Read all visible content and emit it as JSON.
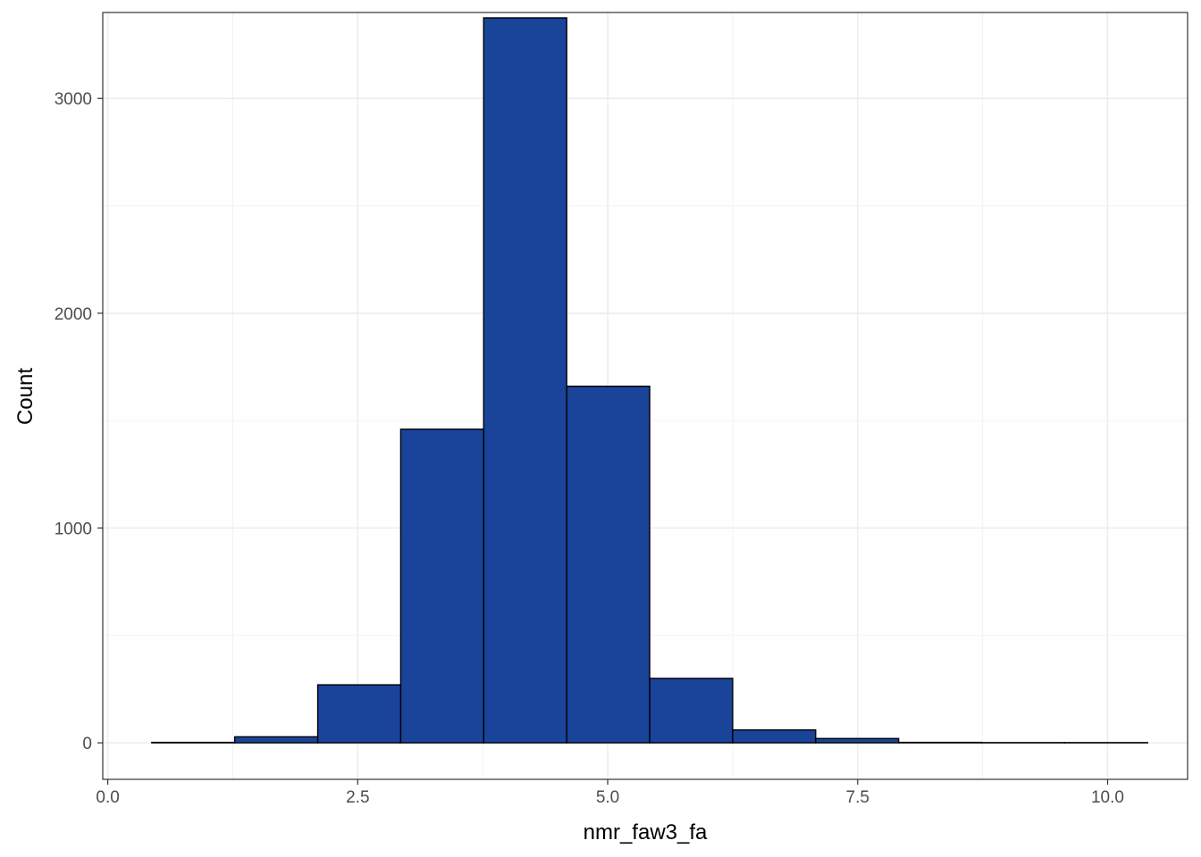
{
  "chart_data": {
    "type": "bar",
    "title": "",
    "xlabel": "nmr_faw3_fa",
    "ylabel": "Count",
    "xlim": [
      -0.05,
      10.8
    ],
    "ylim": [
      -170,
      3400
    ],
    "x_ticks": [
      0.0,
      2.5,
      5.0,
      7.5,
      10.0
    ],
    "x_tick_labels": [
      "0.0",
      "2.5",
      "5.0",
      "7.5",
      "10.0"
    ],
    "y_ticks": [
      0,
      1000,
      2000,
      3000
    ],
    "y_tick_labels": [
      "0",
      "1000",
      "2000",
      "3000"
    ],
    "grid": true,
    "legend": "none",
    "bar_fill": "#1a449a",
    "bar_outline": "#000000",
    "bins": [
      {
        "x0": 0.44,
        "x1": 1.27,
        "count": 2
      },
      {
        "x0": 1.27,
        "x1": 2.1,
        "count": 28
      },
      {
        "x0": 2.1,
        "x1": 2.93,
        "count": 270
      },
      {
        "x0": 2.93,
        "x1": 3.76,
        "count": 1460
      },
      {
        "x0": 3.76,
        "x1": 4.59,
        "count": 3375
      },
      {
        "x0": 4.59,
        "x1": 5.42,
        "count": 1660
      },
      {
        "x0": 5.42,
        "x1": 6.25,
        "count": 300
      },
      {
        "x0": 6.25,
        "x1": 7.08,
        "count": 60
      },
      {
        "x0": 7.08,
        "x1": 7.91,
        "count": 20
      },
      {
        "x0": 7.91,
        "x1": 8.74,
        "count": 2
      },
      {
        "x0": 8.74,
        "x1": 9.57,
        "count": 1
      },
      {
        "x0": 9.57,
        "x1": 10.4,
        "count": 1
      }
    ]
  }
}
